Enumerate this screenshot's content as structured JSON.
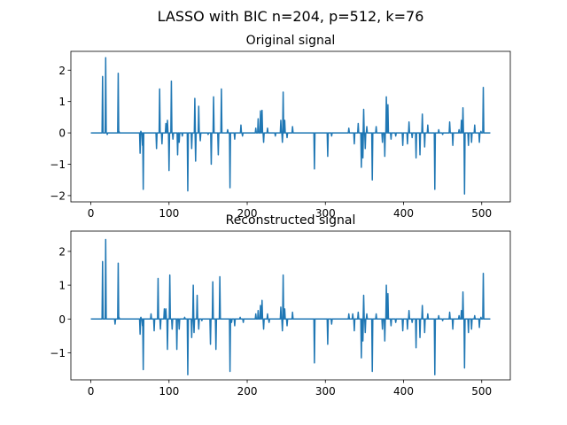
{
  "figure": {
    "suptitle": "LASSO with BIC n=204, p=512, k=76"
  },
  "chart_data": [
    {
      "type": "line",
      "title": "Original signal",
      "xlabel": "",
      "ylabel": "",
      "xlim": [
        -25.55,
        536.55
      ],
      "ylim": [
        -2.2,
        2.6
      ],
      "x_ticks": [
        0,
        100,
        200,
        300,
        400,
        500
      ],
      "y_ticks": [
        -2,
        -1,
        0,
        1,
        2
      ],
      "grid": false,
      "legend": "none",
      "line_color": "#1f77b4",
      "x_range": [
        0,
        511
      ],
      "baseline": 0,
      "spikes": [
        [
          15,
          1.8
        ],
        [
          19,
          2.4
        ],
        [
          21,
          -0.05
        ],
        [
          35,
          1.9
        ],
        [
          36,
          0.05
        ],
        [
          63,
          -0.65
        ],
        [
          64,
          0.05
        ],
        [
          66,
          -0.4
        ],
        [
          67,
          -1.8
        ],
        [
          84,
          -0.5
        ],
        [
          88,
          1.4
        ],
        [
          91,
          -0.35
        ],
        [
          96,
          0.3
        ],
        [
          98,
          0.4
        ],
        [
          100,
          -1.2
        ],
        [
          103,
          1.65
        ],
        [
          105,
          -0.2
        ],
        [
          111,
          -0.7
        ],
        [
          113,
          -0.3
        ],
        [
          117,
          -0.1
        ],
        [
          124,
          -1.85
        ],
        [
          129,
          -0.5
        ],
        [
          133,
          1.1
        ],
        [
          134,
          -0.9
        ],
        [
          138,
          0.85
        ],
        [
          140,
          -0.25
        ],
        [
          150,
          -0.05
        ],
        [
          154,
          -1.0
        ],
        [
          157,
          1.15
        ],
        [
          163,
          -0.7
        ],
        [
          167,
          1.4
        ],
        [
          175,
          0.1
        ],
        [
          178,
          -1.75
        ],
        [
          184,
          -0.2
        ],
        [
          192,
          0.25
        ],
        [
          194,
          -0.1
        ],
        [
          211,
          0.15
        ],
        [
          214,
          0.45
        ],
        [
          217,
          0.7
        ],
        [
          219,
          0.72
        ],
        [
          221,
          -0.3
        ],
        [
          226,
          0.15
        ],
        [
          236,
          -0.1
        ],
        [
          243,
          0.4
        ],
        [
          245,
          -0.3
        ],
        [
          246,
          1.3
        ],
        [
          248,
          0.4
        ],
        [
          251,
          -0.15
        ],
        [
          258,
          0.2
        ],
        [
          286,
          -1.15
        ],
        [
          303,
          -0.75
        ],
        [
          308,
          -0.1
        ],
        [
          330,
          0.15
        ],
        [
          337,
          -0.35
        ],
        [
          342,
          0.3
        ],
        [
          346,
          -1.1
        ],
        [
          348,
          -0.8
        ],
        [
          349,
          0.75
        ],
        [
          351,
          -0.5
        ],
        [
          353,
          0.2
        ],
        [
          360,
          -1.5
        ],
        [
          365,
          0.2
        ],
        [
          373,
          -0.3
        ],
        [
          376,
          -0.75
        ],
        [
          378,
          1.15
        ],
        [
          380,
          0.9
        ],
        [
          384,
          -0.2
        ],
        [
          390,
          -0.1
        ],
        [
          399,
          -0.4
        ],
        [
          405,
          -0.35
        ],
        [
          407,
          0.35
        ],
        [
          411,
          -0.15
        ],
        [
          416,
          -0.8
        ],
        [
          421,
          -0.7
        ],
        [
          424,
          0.6
        ],
        [
          427,
          -0.45
        ],
        [
          431,
          0.25
        ],
        [
          440,
          -1.8
        ],
        [
          445,
          0.1
        ],
        [
          450,
          -0.05
        ],
        [
          459,
          0.35
        ],
        [
          463,
          -0.4
        ],
        [
          471,
          0.1
        ],
        [
          474,
          0.4
        ],
        [
          476,
          0.8
        ],
        [
          478,
          -1.95
        ],
        [
          483,
          -0.4
        ],
        [
          487,
          -0.3
        ],
        [
          491,
          0.25
        ],
        [
          497,
          -0.3
        ],
        [
          499,
          0.05
        ],
        [
          502,
          1.45
        ]
      ]
    },
    {
      "type": "line",
      "title": "Reconstructed signal",
      "xlabel": "",
      "ylabel": "",
      "xlim": [
        -25.55,
        536.55
      ],
      "ylim": [
        -1.8,
        2.6
      ],
      "x_ticks": [
        0,
        100,
        200,
        300,
        400,
        500
      ],
      "y_ticks": [
        -1,
        0,
        1,
        2
      ],
      "grid": false,
      "legend": "none",
      "line_color": "#1f77b4",
      "x_range": [
        0,
        511
      ],
      "baseline": 0,
      "spikes": [
        [
          15,
          1.7
        ],
        [
          19,
          2.35
        ],
        [
          31,
          -0.15
        ],
        [
          35,
          1.65
        ],
        [
          36,
          0.05
        ],
        [
          63,
          -0.45
        ],
        [
          64,
          0.05
        ],
        [
          66,
          -0.2
        ],
        [
          67,
          -1.5
        ],
        [
          77,
          0.15
        ],
        [
          81,
          -0.35
        ],
        [
          86,
          1.2
        ],
        [
          89,
          -0.3
        ],
        [
          94,
          0.3
        ],
        [
          96,
          0.3
        ],
        [
          98,
          -0.9
        ],
        [
          101,
          1.3
        ],
        [
          104,
          -0.3
        ],
        [
          110,
          -0.9
        ],
        [
          113,
          -0.3
        ],
        [
          120,
          0.05
        ],
        [
          124,
          -1.65
        ],
        [
          129,
          -0.55
        ],
        [
          131,
          1.0
        ],
        [
          132,
          -0.4
        ],
        [
          136,
          0.7
        ],
        [
          138,
          -0.3
        ],
        [
          142,
          -0.05
        ],
        [
          153,
          -0.75
        ],
        [
          156,
          1.1
        ],
        [
          160,
          -0.9
        ],
        [
          165,
          1.25
        ],
        [
          178,
          -1.55
        ],
        [
          180,
          -0.1
        ],
        [
          184,
          -0.2
        ],
        [
          191,
          0.05
        ],
        [
          195,
          -0.1
        ],
        [
          211,
          0.15
        ],
        [
          214,
          0.25
        ],
        [
          217,
          0.4
        ],
        [
          219,
          0.55
        ],
        [
          221,
          -0.3
        ],
        [
          226,
          0.15
        ],
        [
          228,
          -0.1
        ],
        [
          243,
          0.35
        ],
        [
          245,
          -0.35
        ],
        [
          246,
          1.3
        ],
        [
          248,
          0.3
        ],
        [
          251,
          -0.2
        ],
        [
          258,
          0.2
        ],
        [
          286,
          -1.3
        ],
        [
          303,
          -0.75
        ],
        [
          308,
          -0.15
        ],
        [
          330,
          0.15
        ],
        [
          335,
          0.15
        ],
        [
          337,
          -0.35
        ],
        [
          342,
          0.2
        ],
        [
          346,
          -1.15
        ],
        [
          348,
          -0.65
        ],
        [
          349,
          0.7
        ],
        [
          351,
          -0.4
        ],
        [
          353,
          0.15
        ],
        [
          360,
          -1.55
        ],
        [
          365,
          0.15
        ],
        [
          373,
          -0.3
        ],
        [
          376,
          -0.65
        ],
        [
          378,
          1.0
        ],
        [
          380,
          0.75
        ],
        [
          384,
          -0.2
        ],
        [
          390,
          -0.1
        ],
        [
          399,
          -0.35
        ],
        [
          405,
          -0.3
        ],
        [
          407,
          0.25
        ],
        [
          411,
          -0.1
        ],
        [
          416,
          -0.85
        ],
        [
          421,
          -0.55
        ],
        [
          424,
          0.4
        ],
        [
          427,
          -0.4
        ],
        [
          431,
          0.15
        ],
        [
          440,
          -1.65
        ],
        [
          445,
          0.1
        ],
        [
          450,
          -0.05
        ],
        [
          459,
          0.2
        ],
        [
          463,
          -0.3
        ],
        [
          471,
          0.1
        ],
        [
          474,
          0.25
        ],
        [
          476,
          0.8
        ],
        [
          478,
          -1.45
        ],
        [
          483,
          -0.4
        ],
        [
          487,
          -0.3
        ],
        [
          491,
          0.1
        ],
        [
          497,
          -0.25
        ],
        [
          499,
          0.05
        ],
        [
          502,
          1.35
        ]
      ]
    }
  ]
}
